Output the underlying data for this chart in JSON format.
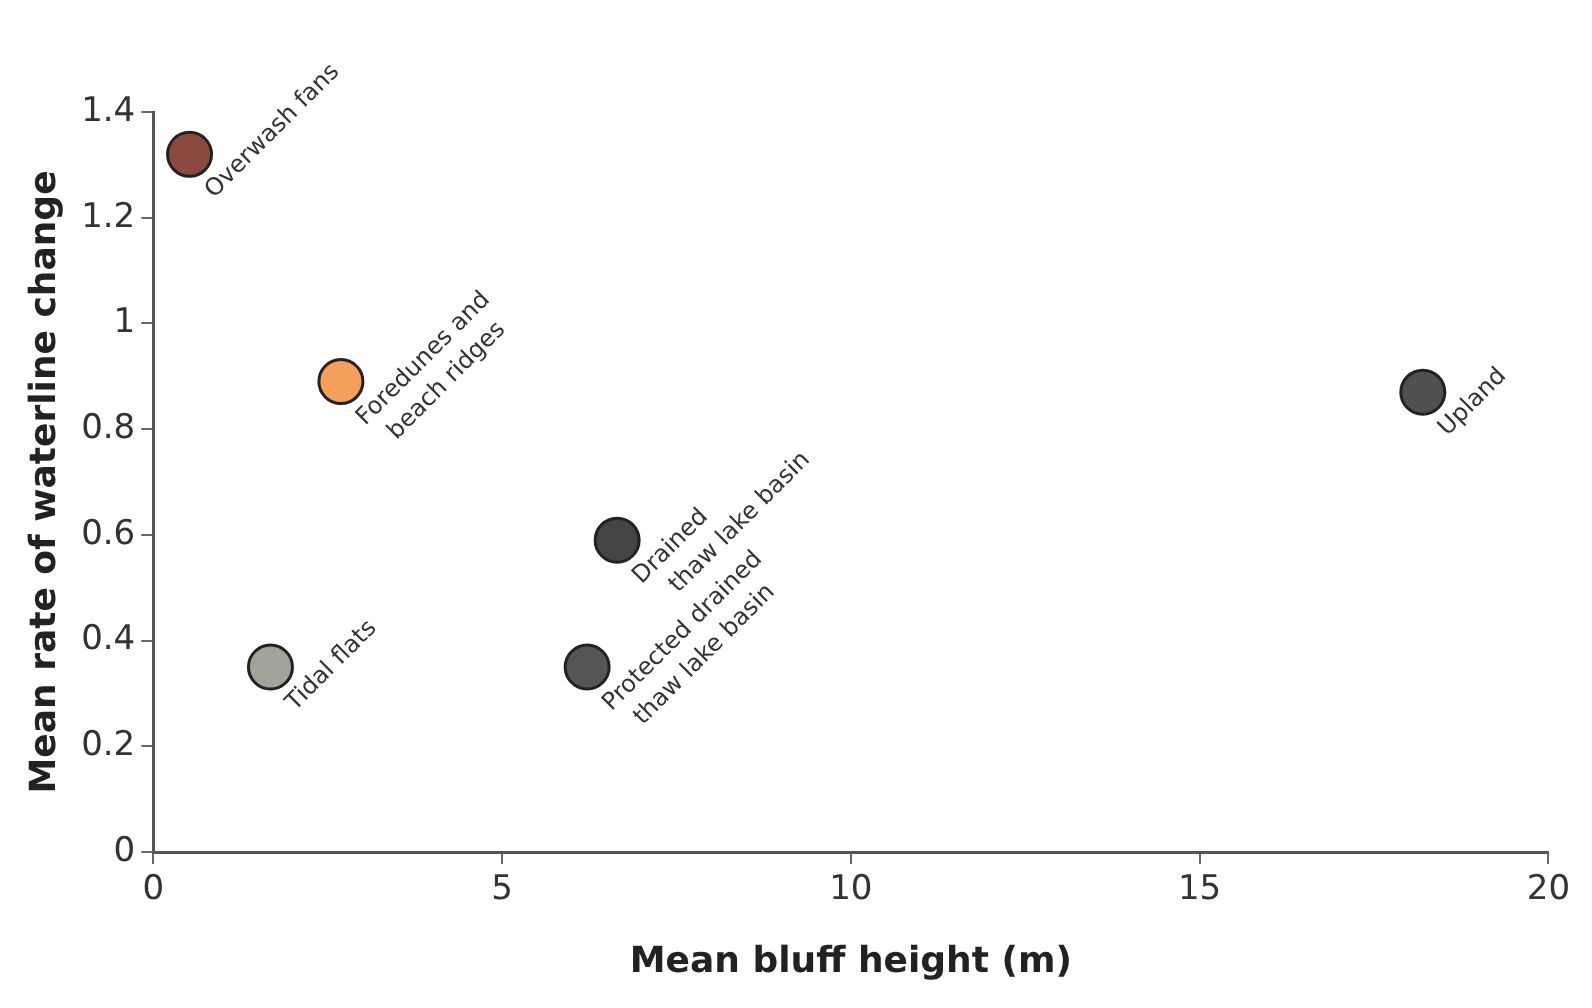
{
  "chart_data": {
    "type": "scatter",
    "xlabel": "Mean bluff height (m)",
    "ylabel": "Mean rate of waterline change",
    "x": [
      0.52,
      2.69,
      1.68,
      6.65,
      6.22,
      18.2
    ],
    "values": [
      1.32,
      0.89,
      0.35,
      0.59,
      0.35,
      0.87
    ],
    "colors": [
      "#8b4a3c",
      "#f5a05a",
      "#a3a39c",
      "#444444",
      "#555555",
      "#505050"
    ],
    "marker": "circle",
    "grid": false,
    "xlim": [
      0,
      20
    ],
    "xticks": [
      0,
      5,
      10,
      15,
      20
    ],
    "ylim": [
      0,
      1.4
    ],
    "yticks": [
      0,
      0.2,
      0.4,
      0.6,
      0.8,
      1,
      1.2,
      1.4
    ],
    "annotations": [
      {
        "text": "Overwash fans",
        "x": 0.52,
        "y": 1.32
      },
      {
        "text": "Foredunes and\nbeach ridges",
        "x": 2.69,
        "y": 0.89
      },
      {
        "text": "Tidal flats",
        "x": 1.68,
        "y": 0.35
      },
      {
        "text": "Drained\n thaw lake basin",
        "x": 6.65,
        "y": 0.59
      },
      {
        "text": "Protected drained\nthaw lake basin",
        "x": 6.22,
        "y": 0.35
      },
      {
        "text": "Upland",
        "x": 18.2,
        "y": 0.87
      }
    ]
  }
}
